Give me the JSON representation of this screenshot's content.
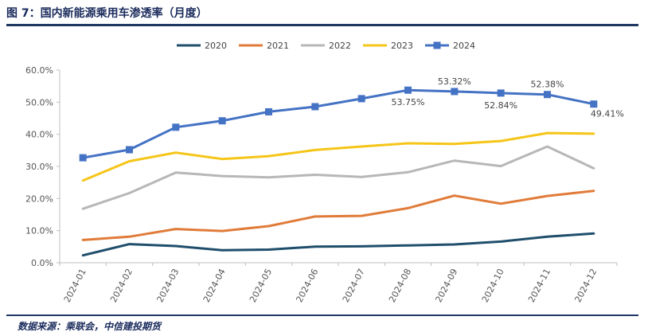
{
  "header": {
    "title": "图 7：国内新能源乘用车渗透率（月度）"
  },
  "footer": {
    "source": "数据来源：乘联会，中信建投期货"
  },
  "chart_data": {
    "type": "line",
    "categories": [
      "2024-01",
      "2024-02",
      "2024-03",
      "2024-04",
      "2024-05",
      "2024-06",
      "2024-07",
      "2024-08",
      "2024-09",
      "2024-10",
      "2024-11",
      "2024-12"
    ],
    "ylim": [
      0,
      60
    ],
    "yticks": [
      0,
      10,
      20,
      30,
      40,
      50,
      60
    ],
    "ytick_labels": [
      "0.0%",
      "10.0%",
      "20.0%",
      "30.0%",
      "40.0%",
      "50.0%",
      "60.0%"
    ],
    "grid": false,
    "legend_position": "top",
    "series": [
      {
        "name": "2020",
        "color": "#1f4e6b",
        "values": [
          2.3,
          5.8,
          5.2,
          3.9,
          4.1,
          5.0,
          5.1,
          5.4,
          5.7,
          6.6,
          8.1,
          9.1
        ]
      },
      {
        "name": "2021",
        "color": "#e07b39",
        "values": [
          7.1,
          8.1,
          10.5,
          9.9,
          11.4,
          14.4,
          14.6,
          17.0,
          20.9,
          18.4,
          20.8,
          22.4
        ]
      },
      {
        "name": "2022",
        "color": "#b7b7b7",
        "values": [
          16.8,
          21.7,
          28.1,
          27.0,
          26.6,
          27.4,
          26.7,
          28.2,
          31.8,
          30.1,
          36.2,
          29.4
        ]
      },
      {
        "name": "2023",
        "color": "#f5c518",
        "values": [
          25.6,
          31.6,
          34.3,
          32.3,
          33.2,
          35.1,
          36.2,
          37.2,
          37.0,
          37.9,
          40.4,
          40.2
        ]
      },
      {
        "name": "2024",
        "color": "#4472c4",
        "marker": "square",
        "values": [
          32.7,
          35.2,
          42.2,
          44.2,
          47.0,
          48.6,
          51.1,
          53.75,
          53.32,
          52.84,
          52.38,
          49.41
        ]
      }
    ],
    "data_labels": [
      {
        "series": "2024",
        "index": 7,
        "text": "53.75%",
        "pos": "below"
      },
      {
        "series": "2024",
        "index": 8,
        "text": "53.32%",
        "pos": "above"
      },
      {
        "series": "2024",
        "index": 9,
        "text": "52.84%",
        "pos": "below"
      },
      {
        "series": "2024",
        "index": 10,
        "text": "52.38%",
        "pos": "above"
      },
      {
        "series": "2024",
        "index": 11,
        "text": "49.41%",
        "pos": "below-right"
      }
    ]
  }
}
